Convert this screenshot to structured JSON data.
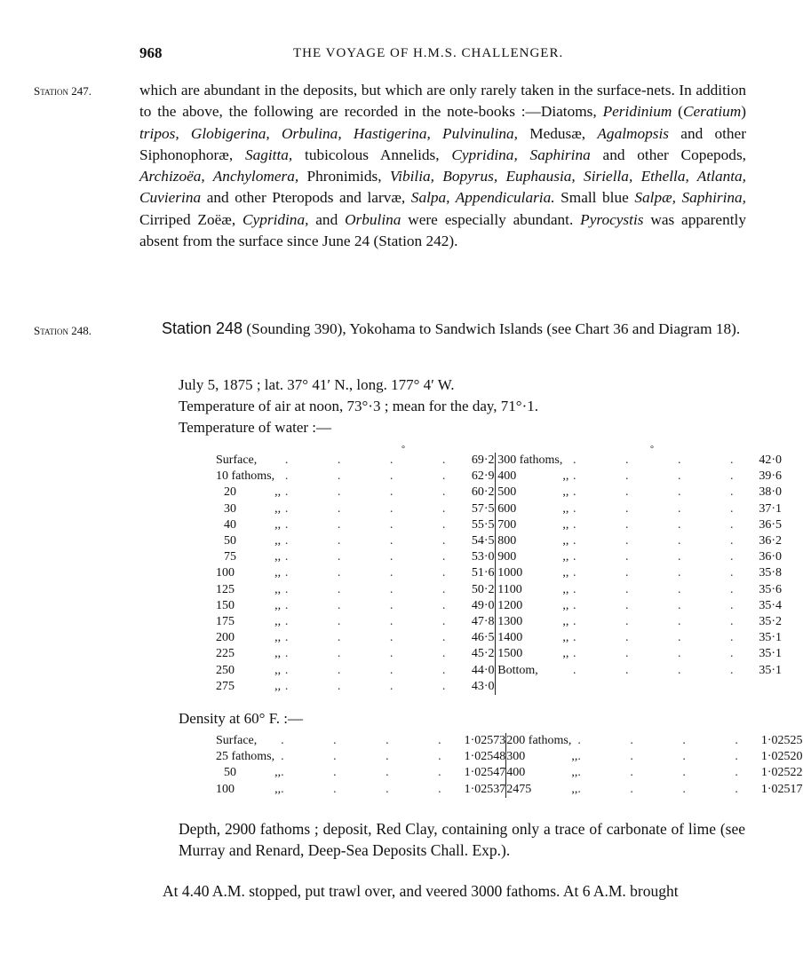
{
  "header": {
    "page_number": "968",
    "running_title": "THE VOYAGE OF H.M.S. CHALLENGER."
  },
  "station247": {
    "margin_label": "Station 247.",
    "paragraph": [
      {
        "t": "which are abundant in the deposits, but which are only rarely taken in the surface-nets. In addition to the above, the following are recorded in the note-books :—Diatoms, "
      },
      {
        "t": "Peridinium",
        "i": true
      },
      {
        "t": " ("
      },
      {
        "t": "Ceratium",
        "i": true
      },
      {
        "t": ") "
      },
      {
        "t": "tripos, Globigerina, Orbulina, Hastigerina, Pulvinulina,",
        "i": true
      },
      {
        "t": " Medusæ, "
      },
      {
        "t": "Agalmopsis",
        "i": true
      },
      {
        "t": " and other Siphonophoræ, "
      },
      {
        "t": "Sagitta,",
        "i": true
      },
      {
        "t": " tubicolous Annelids, "
      },
      {
        "t": "Cypridina, Saphirina",
        "i": true
      },
      {
        "t": " and other Copepods, "
      },
      {
        "t": "Archizoëa, Anchylomera,",
        "i": true
      },
      {
        "t": " Phronimids, "
      },
      {
        "t": "Vibilia, Bopyrus, Euphausia, Siriella, Ethella, Atlanta, Cuvierina",
        "i": true
      },
      {
        "t": " and other Pteropods and larvæ, "
      },
      {
        "t": "Salpa, Appendicularia.",
        "i": true
      },
      {
        "t": "  Small blue "
      },
      {
        "t": "Salpæ, Saphirina,",
        "i": true
      },
      {
        "t": " Cirriped Zoëæ, "
      },
      {
        "t": "Cypridina,",
        "i": true
      },
      {
        "t": " and "
      },
      {
        "t": "Orbulina",
        "i": true
      },
      {
        "t": " were especially abundant.  "
      },
      {
        "t": "Pyrocystis",
        "i": true
      },
      {
        "t": " was apparently absent from the surface since June 24 (Station 242)."
      }
    ]
  },
  "station248": {
    "margin_label": "Station 248.",
    "heading": "Station 248",
    "heading_rest": " (Sounding 390), Yokohama to Sandwich Islands (see Chart 36 and Diagram 18).",
    "date_line": "July 5, 1875 ; lat. 37° 41′ N., long. 177° 4′ W.",
    "air_temp_line": "Temperature of air at noon, 73°·3 ; mean for the day, 71°·1.",
    "water_temp_heading": "Temperature of water :—",
    "degree_mark": "°",
    "temp_left": [
      {
        "d": "Surface,",
        "u": "",
        "v": "69·2"
      },
      {
        "d": "10 fathoms,",
        "u": "",
        "v": "62·9"
      },
      {
        "d": "20",
        "u": ",,",
        "v": "60·2"
      },
      {
        "d": "30",
        "u": ",,",
        "v": "57·5"
      },
      {
        "d": "40",
        "u": ",,",
        "v": "55·5"
      },
      {
        "d": "50",
        "u": ",,",
        "v": "54·5"
      },
      {
        "d": "75",
        "u": ",,",
        "v": "53·0"
      },
      {
        "d": "100",
        "u": ",,",
        "v": "51·6"
      },
      {
        "d": "125",
        "u": ",,",
        "v": "50·2"
      },
      {
        "d": "150",
        "u": ",,",
        "v": "49·0"
      },
      {
        "d": "175",
        "u": ",,",
        "v": "47·8"
      },
      {
        "d": "200",
        "u": ",,",
        "v": "46·5"
      },
      {
        "d": "225",
        "u": ",,",
        "v": "45·2"
      },
      {
        "d": "250",
        "u": ",,",
        "v": "44·0"
      },
      {
        "d": "275",
        "u": ",,",
        "v": "43·0"
      }
    ],
    "temp_right": [
      {
        "d": "300 fathoms,",
        "u": "",
        "v": "42·0"
      },
      {
        "d": "400",
        "u": ",,",
        "v": "39·6"
      },
      {
        "d": "500",
        "u": ",,",
        "v": "38·0"
      },
      {
        "d": "600",
        "u": ",,",
        "v": "37·1"
      },
      {
        "d": "700",
        "u": ",,",
        "v": "36·5"
      },
      {
        "d": "800",
        "u": ",,",
        "v": "36·2"
      },
      {
        "d": "900",
        "u": ",,",
        "v": "36·0"
      },
      {
        "d": "1000",
        "u": ",,",
        "v": "35·8"
      },
      {
        "d": "1100",
        "u": ",,",
        "v": "35·6"
      },
      {
        "d": "1200",
        "u": ",,",
        "v": "35·4"
      },
      {
        "d": "1300",
        "u": ",,",
        "v": "35·2"
      },
      {
        "d": "1400",
        "u": ",,",
        "v": "35·1"
      },
      {
        "d": "1500",
        "u": ",,",
        "v": "35·1"
      },
      {
        "d": "Bottom,",
        "u": "",
        "v": "35·1"
      }
    ],
    "density_heading": "Density at 60° F. :—",
    "density_left": [
      {
        "d": "Surface,",
        "u": "",
        "v": "1·02573"
      },
      {
        "d": "25 fathoms,",
        "u": "",
        "v": "1·02548"
      },
      {
        "d": "50",
        "u": ",,",
        "v": "1·02547"
      },
      {
        "d": "100",
        "u": ",,",
        "v": "1·02537"
      }
    ],
    "density_right": [
      {
        "d": "200 fathoms,",
        "u": "",
        "v": "1·02525"
      },
      {
        "d": "300",
        "u": ",,",
        "v": "1·02520"
      },
      {
        "d": "400",
        "u": ",,",
        "v": "1·02522"
      },
      {
        "d": "2475",
        "u": ",,",
        "v": "1·02517"
      }
    ],
    "depth_para": "Depth, 2900 fathoms ; deposit, Red Clay, containing only a trace of carbonate of lime (see Murray and Renard, Deep-Sea Deposits Chall. Exp.).",
    "trawl_line": "At 4.40 A.M. stopped, put trawl over, and veered 3000 fathoms.  At 6 A.M. brought"
  }
}
